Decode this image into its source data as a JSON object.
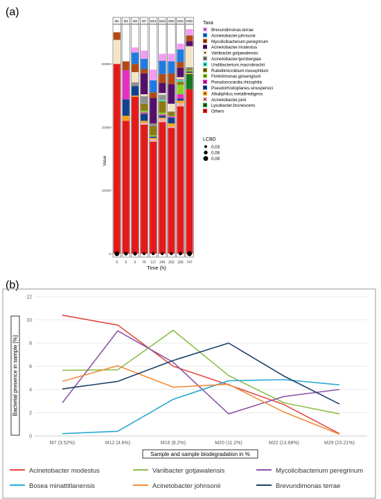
{
  "colors": {
    "Brevundimonas.terrae": "#f39cf2",
    "Acinetobacter.johnsonii": "#1f7be0",
    "Mycolicibacterium.peregrinum": "#b34a12",
    "Acinetobacter.modestus": "#541068",
    "Variibacter.gotjawalensis": "#f4e5c6",
    "Acinetobacter.tjernbergiae": "#8f8f8f",
    "Undibacterium.macrobrachii": "#2fe6c4",
    "Rubellimicrobium.mesophilum": "#8d7a12",
    "Fimbriimonas.ginsengisoli": "#8ccf2b",
    "Pseudonocardia.rhizophila": "#e62ec0",
    "Pseudorhodoplanes.sinuspersici": "#0f4190",
    "Alkaliphilus.metalliredigens": "#f7a316",
    "Acinetobacter.junii": "#f4b0b0",
    "Lysobacter.brunescens": "#177a22",
    "Others": "#e31a1a"
  },
  "chart_data": [
    {
      "type": "bar",
      "stacked": true,
      "panel_label": "(a)",
      "samples": [
        "M1",
        "M2",
        "M3",
        "M7",
        "M12",
        "M16",
        "M20",
        "M22",
        "M29"
      ],
      "categories": [
        "0",
        "0",
        "0",
        "75",
        "117",
        "240",
        "263",
        "335",
        "747"
      ],
      "xlabel": "Time (h)",
      "ylabel": "Value",
      "yticks": [
        0,
        10000,
        20000,
        30000
      ],
      "ylim": [
        0,
        35500
      ],
      "legend_title": "Taxa",
      "legend_taxa": [
        "Brevundimonas.terrae",
        "Acinetobacter.johnsonii",
        "Mycolicibacterium.peregrinum",
        "Acinetobacter.modestus",
        "Variibacter.gotjawalensis",
        "Acinetobacter.tjernbergiae",
        "Undibacterium.macrobrachii",
        "Rubellimicrobium.mesophilum",
        "Fimbriimonas.ginsengisoli",
        "Pseudonocardia.rhizophila",
        "Pseudorhodoplanes.sinuspersici",
        "Alkaliphilus.metalliredigens",
        "Acinetobacter.junii",
        "Lysobacter.brunescens",
        "Others"
      ],
      "size_legend_title": "LCBD",
      "size_legend": [
        {
          "label": "0,03",
          "value": 0.03
        },
        {
          "label": "0,06",
          "value": 0.06
        },
        {
          "label": "0,09",
          "value": 0.09
        }
      ],
      "lcbd": [
        0.09,
        0.06,
        0.06,
        0.04,
        0.04,
        0.04,
        0.04,
        0.05,
        0.09
      ],
      "series": [
        {
          "taxon": "Others",
          "values": [
            30000,
            21000,
            24800,
            20400,
            17700,
            20800,
            19900,
            23300,
            26000
          ]
        },
        {
          "taxon": "Lysobacter.brunescens",
          "values": [
            0,
            0,
            0,
            0,
            0,
            0,
            0,
            0,
            2400
          ]
        },
        {
          "taxon": "Acinetobacter.junii",
          "values": [
            0,
            0,
            0,
            300,
            400,
            500,
            200,
            500,
            0
          ]
        },
        {
          "taxon": "Alkaliphilus.metalliredigens",
          "values": [
            0,
            800,
            200,
            300,
            200,
            200,
            500,
            400,
            200
          ]
        },
        {
          "taxon": "Pseudorhodoplanes.sinuspersici",
          "values": [
            0,
            2600,
            1500,
            1100,
            200,
            300,
            900,
            300,
            200
          ]
        },
        {
          "taxon": "Pseudonocardia.rhizophila",
          "values": [
            0,
            4600,
            0,
            200,
            0,
            200,
            200,
            700,
            0
          ]
        },
        {
          "taxon": "Fimbriimonas.ginsengisoli",
          "values": [
            0,
            0,
            0,
            300,
            200,
            300,
            100,
            1500,
            200
          ]
        },
        {
          "taxon": "Rubellimicrobium.mesophilum",
          "values": [
            0,
            0,
            0,
            1100,
            1500,
            1800,
            600,
            500,
            200
          ]
        },
        {
          "taxon": "Undibacterium.macrobrachii",
          "values": [
            0,
            0,
            0,
            0,
            0,
            200,
            0,
            200,
            0
          ]
        },
        {
          "taxon": "Acinetobacter.tjernbergiae",
          "values": [
            0,
            0,
            600,
            1200,
            400,
            800,
            100,
            200,
            300
          ]
        },
        {
          "taxon": "Variibacter.gotjawalensis",
          "values": [
            3800,
            0,
            1600,
            300,
            0,
            300,
            1200,
            300,
            3300
          ]
        },
        {
          "taxon": "Acinetobacter.modestus",
          "values": [
            0,
            0,
            0,
            3300,
            4000,
            1600,
            3100,
            1500,
            800
          ]
        },
        {
          "taxon": "Mycolicibacterium.peregrinum",
          "values": [
            1200,
            1400,
            1300,
            700,
            900,
            1400,
            1700,
            900,
            900
          ]
        },
        {
          "taxon": "Acinetobacter.johnsonii",
          "values": [
            0,
            0,
            1800,
            1600,
            1900,
            2100,
            1900,
            2000,
            0
          ]
        },
        {
          "taxon": "Brevundimonas.terrae",
          "values": [
            0,
            0,
            800,
            1300,
            1700,
            1100,
            1200,
            900,
            1000
          ]
        }
      ]
    },
    {
      "type": "line",
      "panel_label": "(b)",
      "categories": [
        "M7 (3.52%)",
        "M12 (4.6%)",
        "M16 (8.2%)",
        "M20 (11.2%)",
        "M22 (13.68%)",
        "M29 (23.21%)"
      ],
      "xlabel": "Sample and sample biodegradation in %",
      "ylabel": "Bacterial presence in sample [%]",
      "ylim": [
        0,
        12
      ],
      "yticks": [
        0,
        2,
        4,
        6,
        8,
        10,
        12
      ],
      "grid": true,
      "legend_position": "bottom",
      "series": [
        {
          "name": "Acinetobacter modestus",
          "color": "#e0483f",
          "values": [
            10.4,
            9.55,
            6.0,
            4.4,
            2.7,
            0.2
          ]
        },
        {
          "name": "Variibacter gotjawalensis",
          "color": "#8cbf49",
          "values": [
            5.65,
            5.7,
            9.1,
            5.2,
            2.85,
            1.9
          ]
        },
        {
          "name": "Mycolicibacterium peregrinum",
          "color": "#8b55a6",
          "values": [
            2.85,
            9.05,
            6.35,
            1.9,
            3.4,
            4.0
          ]
        },
        {
          "name": "Bosea minattitlanensis",
          "color": "#27a8d0",
          "values": [
            0.2,
            0.4,
            3.15,
            4.75,
            4.85,
            4.4
          ]
        },
        {
          "name": "Acinetobacter johnsonii",
          "color": "#f08c3a",
          "values": [
            4.7,
            6.05,
            4.2,
            4.45,
            2.05,
            0.15
          ]
        },
        {
          "name": "Brevundimonas terrae",
          "color": "#1c3f66",
          "values": [
            4.05,
            4.7,
            6.5,
            8.0,
            5.15,
            2.75
          ]
        }
      ]
    }
  ]
}
